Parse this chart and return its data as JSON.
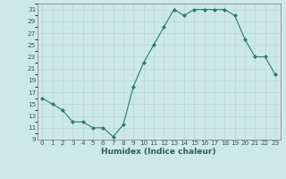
{
  "x": [
    0,
    1,
    2,
    3,
    4,
    5,
    6,
    7,
    8,
    9,
    10,
    11,
    12,
    13,
    14,
    15,
    16,
    17,
    18,
    19,
    20,
    21,
    22,
    23
  ],
  "y": [
    16,
    15,
    14,
    12,
    12,
    11,
    11,
    9.5,
    11.5,
    18,
    22,
    25,
    28,
    31,
    30,
    31,
    31,
    31,
    31,
    30,
    26,
    23,
    23,
    20
  ],
  "line_color": "#2d7a6a",
  "marker": "D",
  "marker_size": 2.0,
  "bg_color": "#cce8e8",
  "grid_major_color": "#b8d8d8",
  "grid_minor_color": "#c8e0e0",
  "xlabel": "Humidex (Indice chaleur)",
  "ylim": [
    9,
    32
  ],
  "yticks": [
    9,
    11,
    13,
    15,
    17,
    19,
    21,
    23,
    25,
    27,
    29,
    31
  ],
  "xlim": [
    -0.5,
    23.5
  ],
  "xticks": [
    0,
    1,
    2,
    3,
    4,
    5,
    6,
    7,
    8,
    9,
    10,
    11,
    12,
    13,
    14,
    15,
    16,
    17,
    18,
    19,
    20,
    21,
    22,
    23
  ],
  "tick_color": "#2d5a5a",
  "tick_fontsize": 5.2,
  "xlabel_fontsize": 6.5
}
